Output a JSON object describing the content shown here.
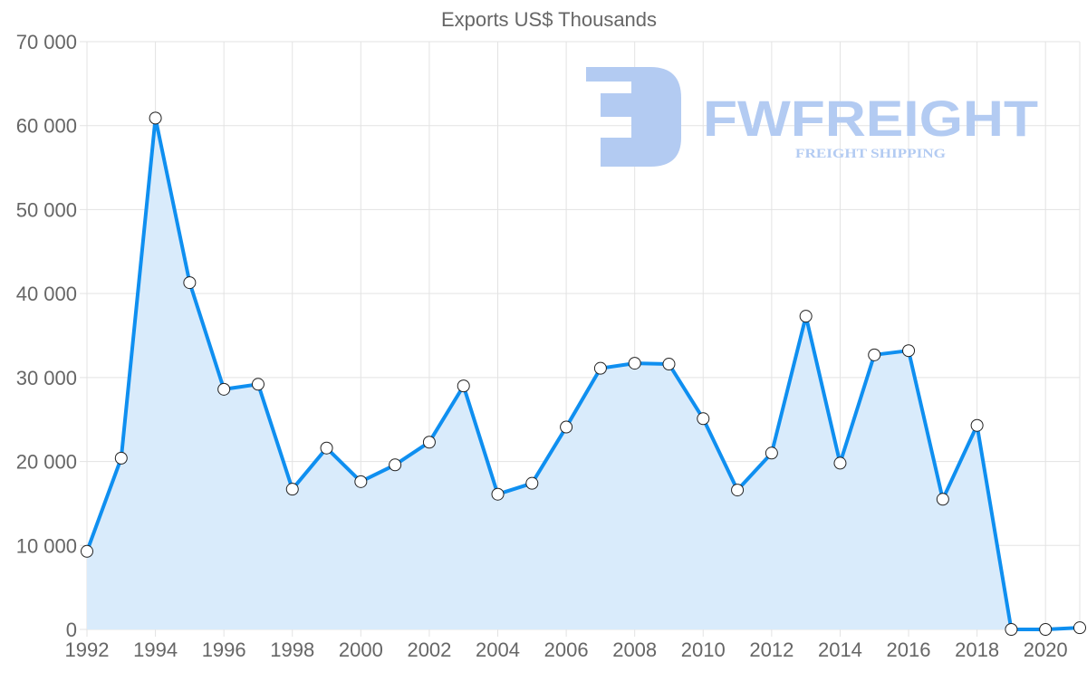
{
  "chart_data": {
    "type": "line",
    "title": "Exports US$ Thousands",
    "xlabel": "",
    "ylabel": "",
    "x": [
      1992,
      1993,
      1994,
      1995,
      1996,
      1997,
      1998,
      1999,
      2000,
      2001,
      2002,
      2003,
      2004,
      2005,
      2006,
      2007,
      2008,
      2009,
      2010,
      2011,
      2012,
      2013,
      2014,
      2015,
      2016,
      2017,
      2018,
      2019,
      2020,
      2021
    ],
    "series": [
      {
        "name": "Exports US$ Thousands",
        "values": [
          9300,
          20400,
          60900,
          41300,
          28600,
          29200,
          16700,
          21600,
          17600,
          19600,
          22300,
          29000,
          16100,
          17400,
          24100,
          31100,
          31700,
          31600,
          25100,
          16600,
          21000,
          37300,
          19800,
          32700,
          33200,
          15500,
          24300,
          0,
          0,
          200
        ],
        "color": "#0f8ff0",
        "fill": "#d9ebfb"
      }
    ],
    "ylim": [
      0,
      70000
    ],
    "yticks": [
      "0",
      "10 000",
      "20 000",
      "30 000",
      "40 000",
      "50 000",
      "60 000",
      "70 000"
    ],
    "xticks": [
      "1992",
      "1994",
      "1996",
      "1998",
      "2000",
      "2002",
      "2004",
      "2006",
      "2008",
      "2010",
      "2012",
      "2014",
      "2016",
      "2018",
      "2020"
    ],
    "grid": true,
    "legend": "none"
  },
  "watermark": {
    "brand": "FWFREIGHT",
    "tagline": "FREIGHT SHIPPING",
    "color": "#b3cbf2"
  }
}
